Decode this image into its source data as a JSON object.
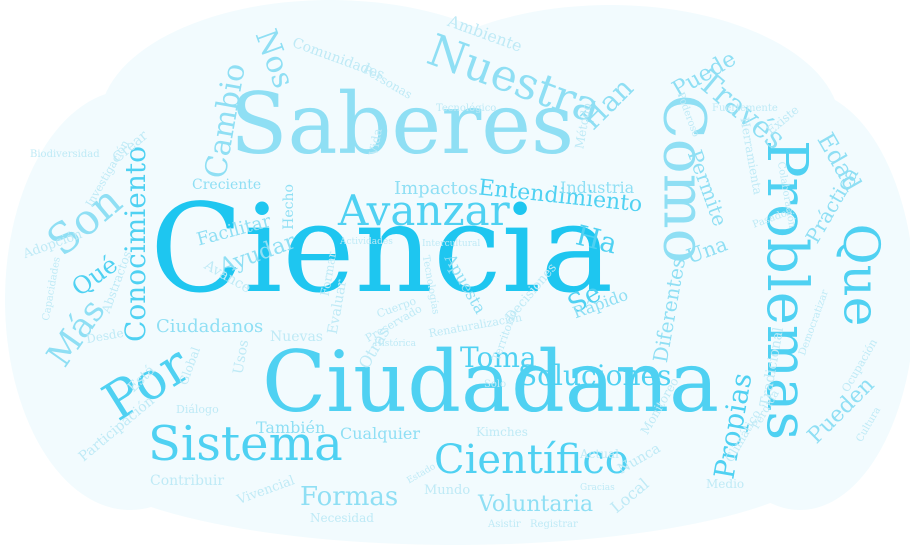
{
  "words": [
    {
      "text": "Ciencia",
      "tone": "strong"
    },
    {
      "text": "Ciudadana",
      "tone": "mid"
    },
    {
      "text": "Saberes",
      "tone": "light"
    },
    {
      "text": "Problemas",
      "tone": "mid"
    },
    {
      "text": "Como",
      "tone": "light"
    },
    {
      "text": "Que",
      "tone": "mid"
    },
    {
      "text": "Sistema",
      "tone": "mid"
    },
    {
      "text": "Por",
      "tone": "mid"
    },
    {
      "text": "Conocimiento",
      "tone": "mid"
    },
    {
      "text": "Avanzar",
      "tone": "mid"
    },
    {
      "text": "Son",
      "tone": "light"
    },
    {
      "text": "Más",
      "tone": "light"
    },
    {
      "text": "Nuestra",
      "tone": "light"
    },
    {
      "text": "Científico",
      "tone": "mid"
    },
    {
      "text": "Soluciones",
      "tone": "mid"
    },
    {
      "text": "Propias",
      "tone": "mid"
    },
    {
      "text": "Toma",
      "tone": "mid"
    },
    {
      "text": "Cambio",
      "tone": "light"
    },
    {
      "text": "Través",
      "tone": "light"
    },
    {
      "text": "Entendimiento",
      "tone": "mid"
    },
    {
      "text": "Ha",
      "tone": "mid"
    },
    {
      "text": "Qué",
      "tone": "mid"
    },
    {
      "text": "Puede",
      "tone": "light"
    },
    {
      "text": "Han",
      "tone": "light"
    },
    {
      "text": "Nos",
      "tone": "light"
    },
    {
      "text": "Edad",
      "tone": "light"
    },
    {
      "text": "Práctica",
      "tone": "light"
    },
    {
      "text": "Pueden",
      "tone": "light"
    },
    {
      "text": "Permite",
      "tone": "light"
    },
    {
      "text": "Formas",
      "tone": "light"
    },
    {
      "text": "Voluntaria",
      "tone": "light"
    },
    {
      "text": "Ciudadanos",
      "tone": "light"
    },
    {
      "text": "Ayudar",
      "tone": "light"
    },
    {
      "text": "Facilitar",
      "tone": "light"
    },
    {
      "text": "Se",
      "tone": "mid"
    },
    {
      "text": "Rápido",
      "tone": "light"
    },
    {
      "text": "Impactos",
      "tone": "light"
    },
    {
      "text": "Industria",
      "tone": "light"
    },
    {
      "text": "Una",
      "tone": "light"
    },
    {
      "text": "Diferentes",
      "tone": "light"
    },
    {
      "text": "Apuesta",
      "tone": "light"
    },
    {
      "text": "También",
      "tone": "light"
    },
    {
      "text": "Cualquier",
      "tone": "light"
    },
    {
      "text": "Creciente",
      "tone": "light"
    },
    {
      "text": "Hecho",
      "tone": "light"
    },
    {
      "text": "Ambiente",
      "tone": "faint"
    },
    {
      "text": "Comunidades",
      "tone": "faint"
    },
    {
      "text": "Personas",
      "tone": "faint"
    },
    {
      "text": "Tecnológico",
      "tone": "faint"
    },
    {
      "text": "Herramienta",
      "tone": "faint"
    },
    {
      "text": "Actividades",
      "tone": "faint"
    },
    {
      "text": "Avance",
      "tone": "faint"
    },
    {
      "text": "Nuevas",
      "tone": "faint"
    },
    {
      "text": "Evaluar",
      "tone": "faint"
    },
    {
      "text": "Otras",
      "tone": "faint"
    },
    {
      "text": "Usos",
      "tone": "faint"
    },
    {
      "text": "Global",
      "tone": "faint"
    },
    {
      "text": "Abstractos",
      "tone": "faint"
    },
    {
      "text": "Desde",
      "tone": "faint"
    },
    {
      "text": "Está",
      "tone": "faint"
    },
    {
      "text": "Adopción",
      "tone": "faint"
    },
    {
      "text": "Capacidades",
      "tone": "faint"
    },
    {
      "text": "Biodiversidad",
      "tone": "faint"
    },
    {
      "text": "Investigación",
      "tone": "faint"
    },
    {
      "text": "Crear",
      "tone": "faint"
    },
    {
      "text": "Participación",
      "tone": "faint"
    },
    {
      "text": "Diálogo",
      "tone": "faint"
    },
    {
      "text": "Contribuir",
      "tone": "faint"
    },
    {
      "text": "Vivencial",
      "tone": "faint"
    },
    {
      "text": "Necesidad",
      "tone": "faint"
    },
    {
      "text": "Asistir",
      "tone": "faint"
    },
    {
      "text": "Registrar",
      "tone": "faint"
    },
    {
      "text": "Local",
      "tone": "faint"
    },
    {
      "text": "Nunca",
      "tone": "faint"
    },
    {
      "text": "Actual",
      "tone": "faint"
    },
    {
      "text": "Mundo",
      "tone": "faint"
    },
    {
      "text": "Kimches",
      "tone": "faint"
    },
    {
      "text": "Monitoreo",
      "tone": "faint"
    },
    {
      "text": "Medio",
      "tone": "faint"
    },
    {
      "text": "Tradicional",
      "tone": "faint"
    },
    {
      "text": "Climático",
      "tone": "faint"
    },
    {
      "text": "Pérdida",
      "tone": "faint"
    },
    {
      "text": "Colaboración",
      "tone": "faint"
    },
    {
      "text": "Pasados",
      "tone": "faint"
    },
    {
      "text": "Existe",
      "tone": "faint"
    },
    {
      "text": "Poderoso",
      "tone": "faint"
    },
    {
      "text": "Cultura",
      "tone": "faint"
    },
    {
      "text": "Ocupación",
      "tone": "faint"
    },
    {
      "text": "Democratizar",
      "tone": "faint"
    },
    {
      "text": "Cuerpo",
      "tone": "faint"
    },
    {
      "text": "Formar",
      "tone": "faint"
    },
    {
      "text": "Preservado",
      "tone": "faint"
    },
    {
      "text": "Intercultural",
      "tone": "faint"
    },
    {
      "text": "Renaturalización",
      "tone": "faint"
    },
    {
      "text": "Territorio",
      "tone": "faint"
    },
    {
      "text": "Decisiones",
      "tone": "faint"
    },
    {
      "text": "Tecnologías",
      "tone": "faint"
    },
    {
      "text": "Histórica",
      "tone": "faint"
    },
    {
      "text": "Método",
      "tone": "faint"
    },
    {
      "text": "Vida",
      "tone": "faint"
    },
    {
      "text": "Fuertemente",
      "tone": "faint"
    },
    {
      "text": "Solo",
      "tone": "faint"
    },
    {
      "text": "Estado",
      "tone": "faint"
    },
    {
      "text": "Gracias",
      "tone": "faint"
    }
  ],
  "colors": {
    "strong": "#1ec6f0",
    "mid": "#4fd1f2",
    "light": "#8fdff4",
    "faint": "#bfeaf6",
    "cloud": "#f2fbfe"
  }
}
